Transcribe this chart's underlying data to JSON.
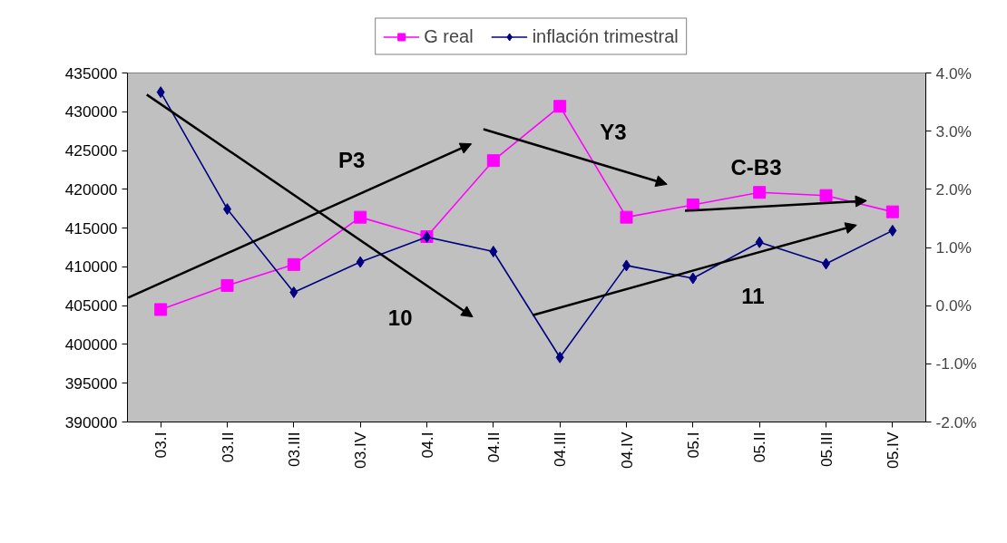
{
  "chart_data": {
    "type": "line",
    "categories": [
      "03.I",
      "03.II",
      "03.III",
      "03.IV",
      "04.I",
      "04.II",
      "04.III",
      "04.IV",
      "05.I",
      "05.II",
      "05.III",
      "05.IV"
    ],
    "series": [
      {
        "name": "G real",
        "color": "#ff00ff",
        "marker": "square",
        "values": [
          404500,
          407600,
          410300,
          416400,
          413900,
          423700,
          430700,
          416400,
          418000,
          419600,
          419200,
          417100
        ]
      },
      {
        "name": "inflación trimestral",
        "color": "#000080",
        "marker": "diamond",
        "axis": "y2",
        "values": [
          3.67,
          1.66,
          0.23,
          0.75,
          1.18,
          0.93,
          -0.89,
          0.69,
          0.47,
          1.09,
          0.72,
          1.29
        ]
      }
    ],
    "ylim": [
      390000,
      435000
    ],
    "yticks": [
      390000,
      395000,
      400000,
      405000,
      410000,
      415000,
      420000,
      425000,
      430000,
      435000
    ],
    "y2lim": [
      -2,
      4
    ],
    "y2ticks": [
      {
        "value": -2,
        "label": "-2.0%"
      },
      {
        "value": -1,
        "label": "-1.0%"
      },
      {
        "value": 0,
        "label": "0.0%"
      },
      {
        "value": 1,
        "label": "1.0%"
      },
      {
        "value": 2,
        "label": "2.0%"
      },
      {
        "value": 3,
        "label": "3.0%"
      },
      {
        "value": 4,
        "label": "4.0%"
      }
    ],
    "annotations": [
      "P3",
      "10",
      "Y3",
      "C-B3",
      "11"
    ],
    "grid": false,
    "legend": "top"
  }
}
